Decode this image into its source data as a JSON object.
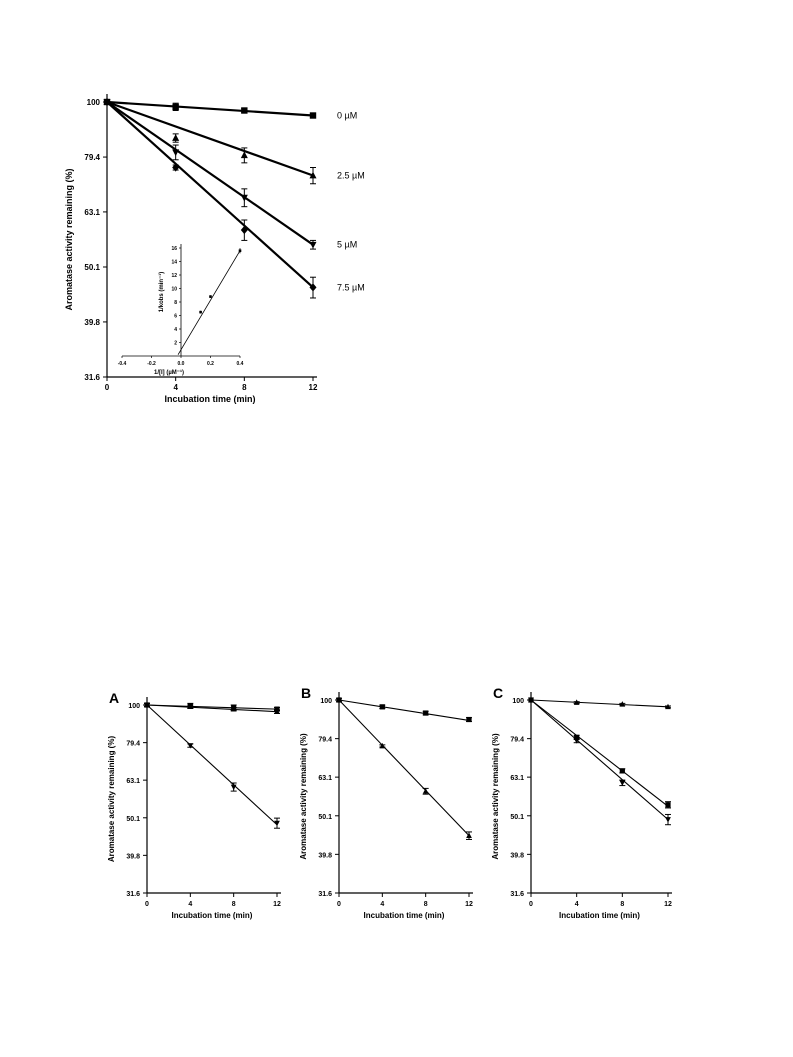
{
  "chart_data": [
    {
      "id": "main",
      "type": "line",
      "ylog": true,
      "xlabel": "Incubation time (min)",
      "ylabel": "Aromatase activity remaining (%)",
      "xlim": [
        0,
        12
      ],
      "ylim": [
        31.6,
        100
      ],
      "xticks": [
        0,
        4,
        8,
        12
      ],
      "yticks": [
        100,
        79.4,
        63.1,
        50.1,
        39.8,
        31.6
      ],
      "series": [
        {
          "marker": "square",
          "label": "0 µM",
          "x": [
            0,
            4,
            8,
            12
          ],
          "y": [
            100,
            98,
            96.5,
            94.5
          ],
          "fit_y": [
            100,
            94.5
          ],
          "err": [
            0,
            1.5,
            0.8,
            0.8
          ]
        },
        {
          "marker": "triangle",
          "label": "2.5 µM",
          "x": [
            0,
            4,
            8,
            12
          ],
          "y": [
            100,
            86,
            80,
            73.5
          ],
          "fit_y": [
            100,
            73.5
          ],
          "err": [
            0,
            1.5,
            2.5,
            2.5
          ]
        },
        {
          "marker": "triangle-down",
          "label": "5 µM",
          "x": [
            0,
            4,
            8,
            12
          ],
          "y": [
            100,
            81,
            67,
            55
          ],
          "fit_y": [
            100,
            55
          ],
          "err": [
            0,
            2.5,
            2.5,
            1
          ]
        },
        {
          "marker": "diamond",
          "label": "7.5 µM",
          "x": [
            0,
            4,
            8,
            12
          ],
          "y": [
            100,
            76,
            58.5,
            46
          ],
          "fit_y": [
            100,
            46
          ],
          "err": [
            0,
            0.8,
            2.5,
            2
          ]
        }
      ],
      "inset": {
        "xlabel": "1/[I] (µM⁻¹)",
        "ylabel": "1/kobs (min⁻¹)",
        "xlim": [
          -0.4,
          0.4
        ],
        "ylim": [
          0,
          16
        ],
        "xticks": [
          -0.4,
          -0.2,
          0.0,
          0.2,
          0.4
        ],
        "xtick_labels": [
          "-0.4",
          "-0.2",
          "0.0",
          "0.2",
          "0.4"
        ],
        "yticks": [
          2,
          4,
          6,
          8,
          10,
          12,
          14,
          16
        ],
        "x": [
          0.133,
          0.2,
          0.4
        ],
        "y": [
          6.5,
          8.8,
          15.6
        ],
        "err": [
          0.2,
          0.2,
          0.4
        ],
        "fit": {
          "x": [
            -0.02,
            0.4
          ],
          "y": [
            0.2,
            15.6
          ]
        }
      }
    },
    {
      "id": "A",
      "type": "line",
      "ylog": true,
      "panel": "A",
      "xlabel": "Incubation time (min)",
      "ylabel": "Aromatase activity remaining (%)",
      "xlim": [
        0,
        12
      ],
      "ylim": [
        31.6,
        100
      ],
      "xticks": [
        0,
        4,
        8,
        12
      ],
      "yticks": [
        100,
        79.4,
        63.1,
        50.1,
        39.8,
        31.6
      ],
      "series": [
        {
          "marker": "square",
          "x": [
            0,
            4,
            8,
            12
          ],
          "y": [
            100,
            99.5,
            98.5,
            97.5
          ],
          "fit_y": [
            100,
            97.5
          ],
          "err": [
            1,
            1.5,
            1.5,
            1
          ]
        },
        {
          "marker": "triangle",
          "x": [
            0,
            4,
            8,
            12
          ],
          "y": [
            100,
            99,
            97.5,
            96
          ],
          "fit_y": [
            100,
            96
          ],
          "err": [
            1,
            1,
            1,
            1
          ]
        },
        {
          "marker": "triangle-down",
          "x": [
            0,
            4,
            8,
            12
          ],
          "y": [
            100,
            78,
            60.5,
            48.5
          ],
          "fit_y": [
            100,
            48
          ],
          "err": [
            0,
            0.8,
            1.5,
            1.5
          ]
        }
      ]
    },
    {
      "id": "B",
      "type": "line",
      "ylog": true,
      "panel": "B",
      "xlabel": "Incubation time (min)",
      "ylabel": "Aromatase activity remaining (%)",
      "xlim": [
        0,
        12
      ],
      "ylim": [
        31.6,
        100
      ],
      "xticks": [
        0,
        4,
        8,
        12
      ],
      "yticks": [
        100,
        79.4,
        63.1,
        50.1,
        39.8,
        31.6
      ],
      "series": [
        {
          "marker": "square",
          "x": [
            0,
            4,
            8,
            12
          ],
          "y": [
            100,
            96,
            92.5,
            89
          ],
          "fit_y": [
            100,
            88.5
          ],
          "err": [
            1,
            1,
            1,
            1
          ]
        },
        {
          "marker": "triangle",
          "x": [
            0,
            4,
            8,
            12
          ],
          "y": [
            100,
            76,
            58,
            44.5
          ],
          "fit_y": [
            100,
            44.5
          ],
          "err": [
            0,
            0.5,
            1,
            1
          ]
        }
      ]
    },
    {
      "id": "C",
      "type": "line",
      "ylog": true,
      "panel": "C",
      "xlabel": "Incubation time (min)",
      "ylabel": "Aromatase activity remaining (%)",
      "xlim": [
        0,
        12
      ],
      "ylim": [
        31.6,
        100
      ],
      "xticks": [
        0,
        4,
        8,
        12
      ],
      "yticks": [
        100,
        79.4,
        63.1,
        50.1,
        39.8,
        31.6
      ],
      "series": [
        {
          "marker": "triangle",
          "x": [
            0,
            4,
            8,
            12
          ],
          "y": [
            100,
            98.5,
            97.5,
            96
          ],
          "fit_y": [
            100,
            96
          ],
          "err": [
            0,
            0.5,
            0.5,
            0.5
          ]
        },
        {
          "marker": "square",
          "x": [
            0,
            4,
            8,
            12
          ],
          "y": [
            100,
            80,
            65.5,
            53.5
          ],
          "fit_y": [
            100,
            53
          ],
          "err": [
            0,
            1,
            0.8,
            1
          ]
        },
        {
          "marker": "triangle-down",
          "x": [
            0,
            4,
            8,
            12
          ],
          "y": [
            100,
            78.5,
            61,
            49
          ],
          "fit_y": [
            100,
            49
          ],
          "err": [
            0,
            1,
            1,
            1.5
          ]
        }
      ]
    }
  ]
}
